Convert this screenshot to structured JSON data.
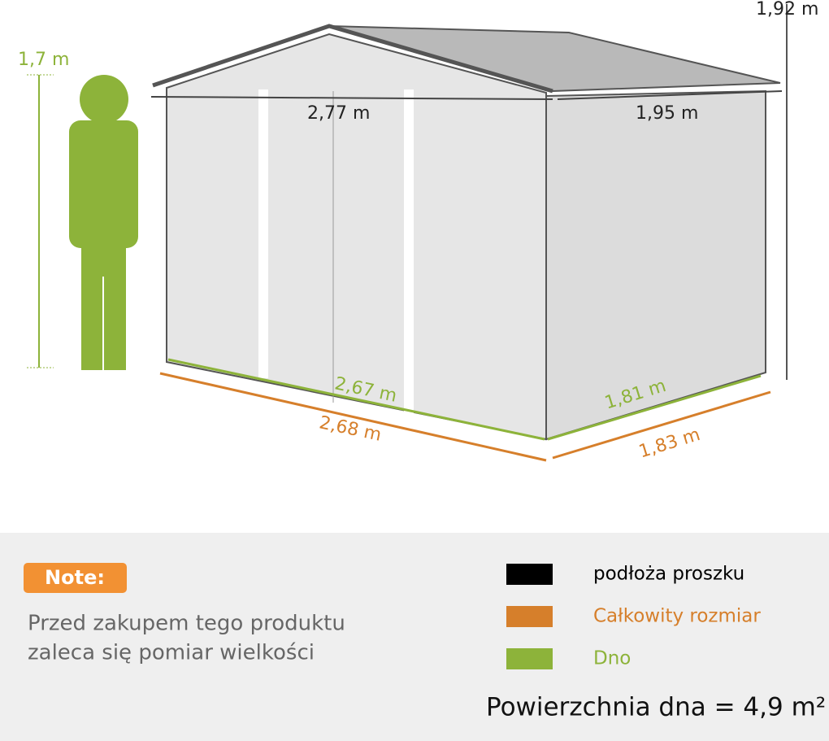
{
  "person_height": "1,7 m",
  "dimensions": {
    "total_height": "1,92 m",
    "roof_front": "2,77 m",
    "roof_side": "1,95 m",
    "base_front": "2,67 m",
    "base_side": "1,81 m",
    "total_front": "2,68 m",
    "total_side": "1,83 m"
  },
  "note": {
    "badge": "Note:",
    "lines": [
      "Przed zakupem tego produktu",
      "zaleca się pomiar wielkości"
    ]
  },
  "legend": [
    {
      "label": "podłoża proszku",
      "color": "#000000"
    },
    {
      "label": "Całkowity rozmiar",
      "color": "#d67f2b"
    },
    {
      "label": "Dno",
      "color": "#8db33a"
    }
  ],
  "floor_area": "Powierzchnia dna = 4,9 m²"
}
